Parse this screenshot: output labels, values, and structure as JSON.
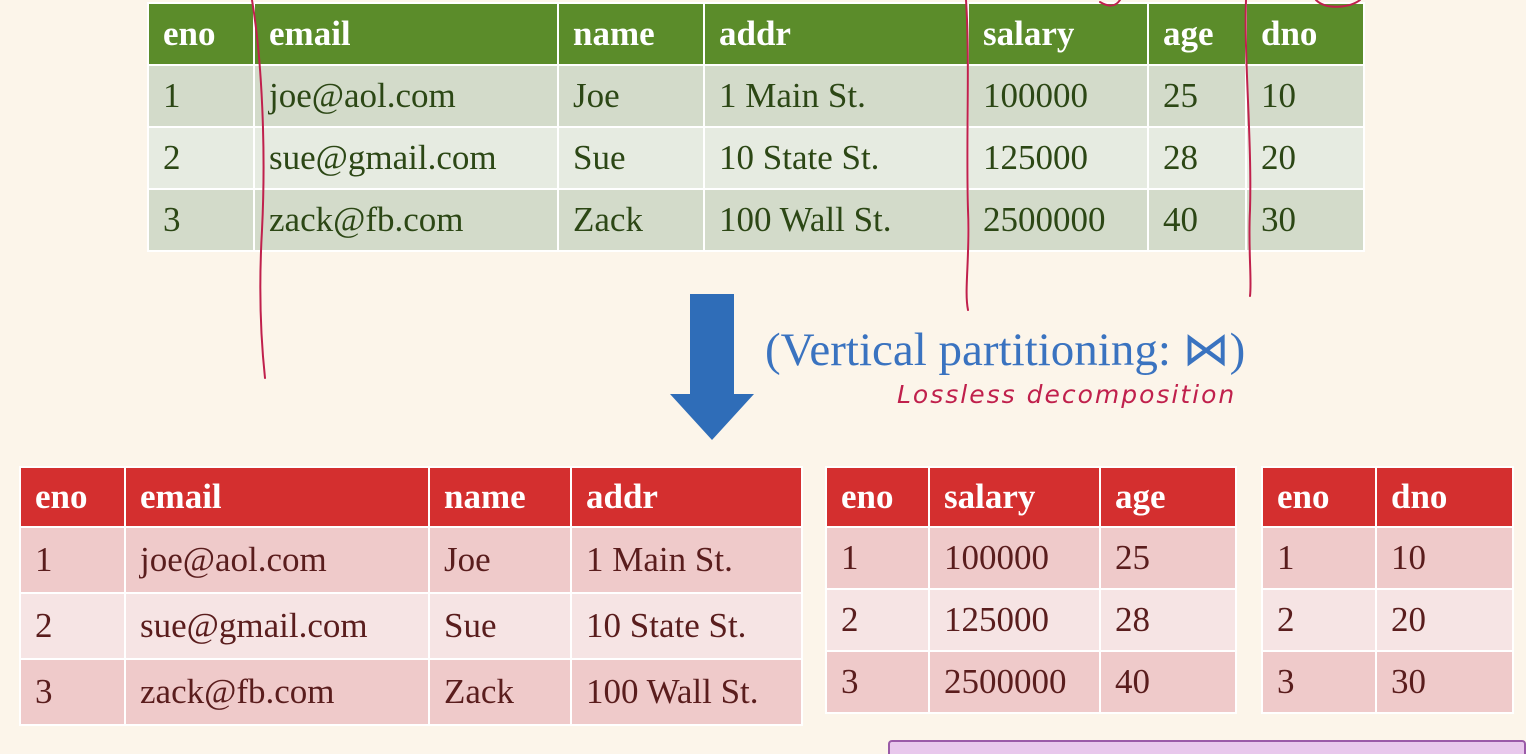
{
  "original_table": {
    "headers": [
      "eno",
      "email",
      "name",
      "addr",
      "salary",
      "age",
      "dno"
    ],
    "rows": [
      [
        "1",
        "joe@aol.com",
        "Joe",
        "1 Main St.",
        "100000",
        "25",
        "10"
      ],
      [
        "2",
        "sue@gmail.com",
        "Sue",
        "10 State St.",
        "125000",
        "28",
        "20"
      ],
      [
        "3",
        "zack@fb.com",
        "Zack",
        "100 Wall St.",
        "2500000",
        "40",
        "30"
      ]
    ]
  },
  "caption": "(Vertical partitioning: ⋈)",
  "annotation": "Lossless decomposition",
  "partition_1": {
    "headers": [
      "eno",
      "email",
      "name",
      "addr"
    ],
    "rows": [
      [
        "1",
        "joe@aol.com",
        "Joe",
        "1 Main St."
      ],
      [
        "2",
        "sue@gmail.com",
        "Sue",
        "10 State St."
      ],
      [
        "3",
        "zack@fb.com",
        "Zack",
        "100 Wall St."
      ]
    ]
  },
  "partition_2": {
    "headers": [
      "eno",
      "salary",
      "age"
    ],
    "rows": [
      [
        "1",
        "100000",
        "25"
      ],
      [
        "2",
        "125000",
        "28"
      ],
      [
        "3",
        "2500000",
        "40"
      ]
    ]
  },
  "partition_3": {
    "headers": [
      "eno",
      "dno"
    ],
    "rows": [
      [
        "1",
        "10"
      ],
      [
        "2",
        "20"
      ],
      [
        "3",
        "30"
      ]
    ]
  },
  "colors": {
    "green_header": "#5b8c2a",
    "red_header": "#d42f2f",
    "caption_blue": "#3a73c0",
    "ink_pink": "#c0204c",
    "arrow_blue": "#2f6db8"
  }
}
